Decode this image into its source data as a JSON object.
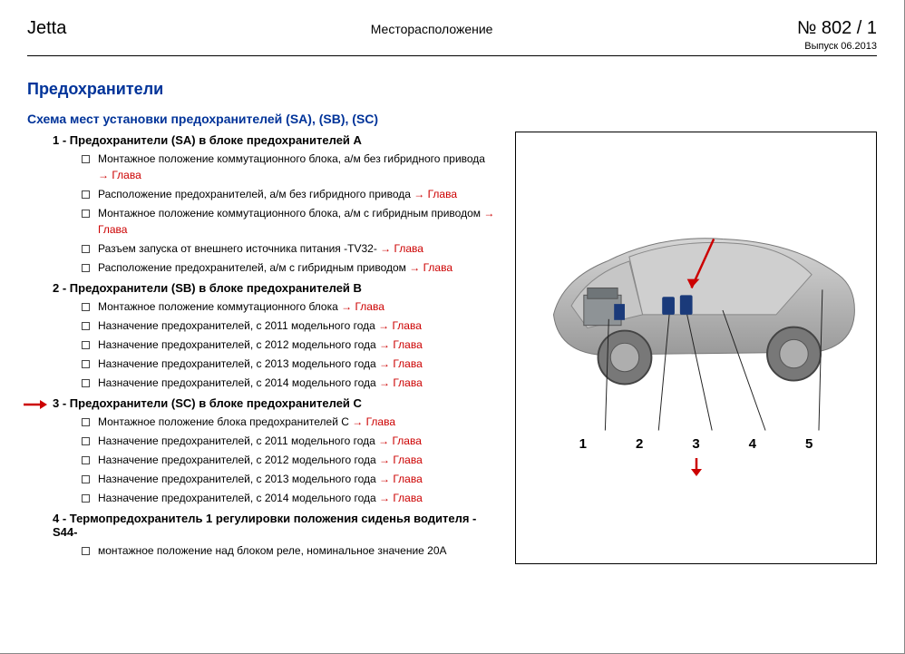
{
  "header": {
    "left": "Jetta",
    "center": "Месторасположение",
    "docno": "№  802 / 1",
    "issue": "Выпуск 06.2013"
  },
  "main_title": "Предохранители",
  "subtitle": "Схема мест установки предохранителей (SA), (SB), (SC)",
  "link_label": "→ Глава",
  "sections": [
    {
      "num": "1",
      "head": "Предохранители (SA) в блоке предохранителей A",
      "items": [
        "Монтажное положение коммутационного блока, а/м без гибридного привода",
        "Расположение предохранителей, а/м без гибридного привода",
        "Монтажное положение коммутационного блока, а/м с гибридным приводом",
        "Разъем запуска от внешнего источника питания -TV32-",
        "Расположение предохранителей, а/м с гибридным приводом"
      ]
    },
    {
      "num": "2",
      "head": "Предохранители (SB) в блоке предохранителей B",
      "items": [
        "Монтажное положение коммутационного блока",
        "Назначение предохранителей, с 2011 модельного года",
        "Назначение предохранителей, с 2012 модельного года",
        "Назначение предохранителей, с 2013 модельного года",
        "Назначение предохранителей, с 2014 модельного года"
      ]
    },
    {
      "num": "3",
      "head": "Предохранители (SC) в блоке предохранителей C",
      "highlighted": true,
      "items": [
        "Монтажное положение блока предохранителей C",
        "Назначение предохранителей, с 2011 модельного года",
        "Назначение предохранителей, с 2012 модельного года",
        "Назначение предохранителей, с 2013 модельного года",
        "Назначение предохранителей, с 2014 модельного года"
      ]
    },
    {
      "num": "4",
      "head": "Термопредохранитель 1 регулировки положения сиденья водителя -S44-",
      "items_plain": [
        "монтажное положение над блоком реле, номинальное значение 20A"
      ]
    }
  ],
  "diagram": {
    "callouts": [
      "1",
      "2",
      "3",
      "4",
      "5"
    ],
    "colors": {
      "body": "#b8b8b8",
      "body_dark": "#949494",
      "wheel": "#787878",
      "arrow": "#cc0000",
      "highlight": "#1a3a7a",
      "line": "#222222"
    }
  }
}
